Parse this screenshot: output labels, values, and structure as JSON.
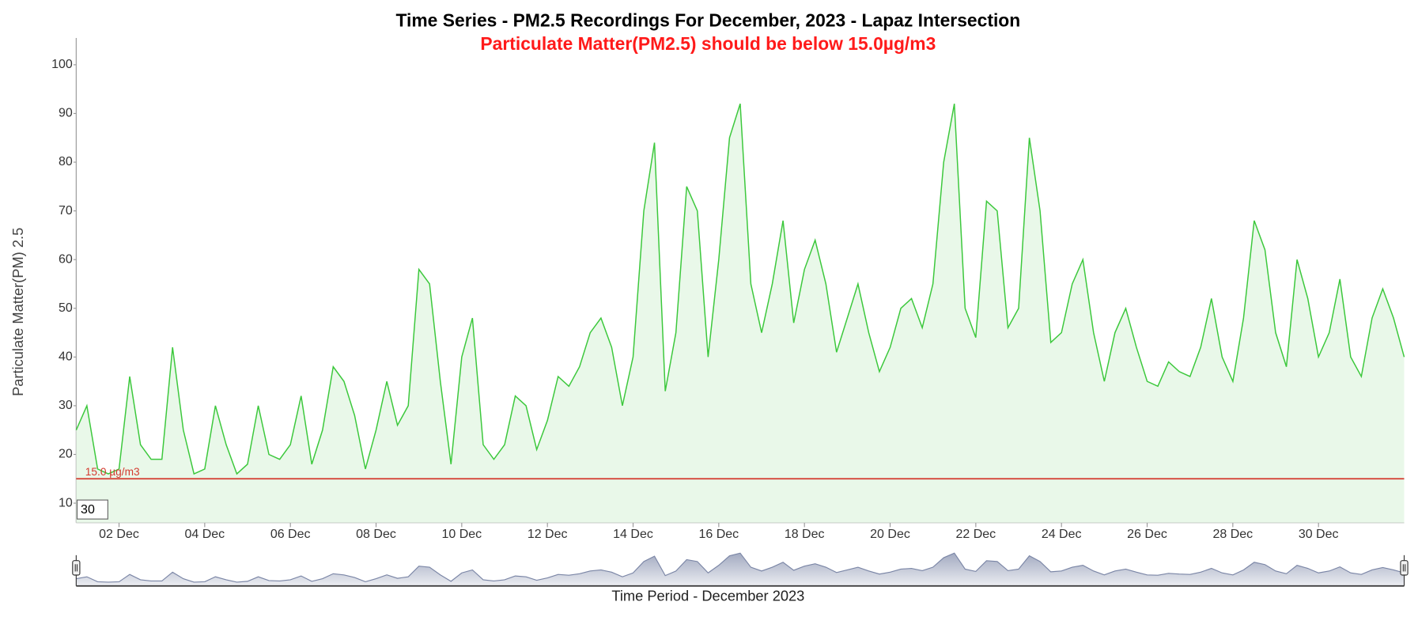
{
  "chart_data": {
    "type": "line",
    "title": "Time Series - PM2.5 Recordings For December, 2023 - Lapaz Intersection",
    "subtitle": "Particulate Matter(PM2.5) should be below 15.0µg/m3",
    "y_label": "Particulate Matter(PM) 2.5",
    "x_label": "Time Period - December 2023",
    "zoom_input": "30",
    "threshold": {
      "value": 15,
      "label": "15.0 µg/m3",
      "color": "#d43a2f"
    },
    "xlim": [
      1,
      32
    ],
    "ylim": [
      6,
      105.5
    ],
    "yticks": [
      10,
      20,
      30,
      40,
      50,
      60,
      70,
      80,
      90,
      100
    ],
    "xticks": [
      {
        "value": 2,
        "label": "02 Dec"
      },
      {
        "value": 4,
        "label": "04 Dec"
      },
      {
        "value": 6,
        "label": "06 Dec"
      },
      {
        "value": 8,
        "label": "08 Dec"
      },
      {
        "value": 10,
        "label": "10 Dec"
      },
      {
        "value": 12,
        "label": "12 Dec"
      },
      {
        "value": 14,
        "label": "14 Dec"
      },
      {
        "value": 16,
        "label": "16 Dec"
      },
      {
        "value": 18,
        "label": "18 Dec"
      },
      {
        "value": 20,
        "label": "20 Dec"
      },
      {
        "value": 22,
        "label": "22 Dec"
      },
      {
        "value": 24,
        "label": "24 Dec"
      },
      {
        "value": 26,
        "label": "26 Dec"
      },
      {
        "value": 28,
        "label": "28 Dec"
      },
      {
        "value": 30,
        "label": "30 Dec"
      }
    ],
    "x": [
      1,
      1.25,
      1.5,
      1.75,
      2,
      2.25,
      2.5,
      2.75,
      3,
      3.25,
      3.5,
      3.75,
      4,
      4.25,
      4.5,
      4.75,
      5,
      5.25,
      5.5,
      5.75,
      6,
      6.25,
      6.5,
      6.75,
      7,
      7.25,
      7.5,
      7.75,
      8,
      8.25,
      8.5,
      8.75,
      9,
      9.25,
      9.5,
      9.75,
      10,
      10.25,
      10.5,
      10.75,
      11,
      11.25,
      11.5,
      11.75,
      12,
      12.25,
      12.5,
      12.75,
      13,
      13.25,
      13.5,
      13.75,
      14,
      14.25,
      14.5,
      14.75,
      15,
      15.25,
      15.5,
      15.75,
      16,
      16.25,
      16.5,
      16.75,
      17,
      17.25,
      17.5,
      17.75,
      18,
      18.25,
      18.5,
      18.75,
      19,
      19.25,
      19.5,
      19.75,
      20,
      20.25,
      20.5,
      20.75,
      21,
      21.25,
      21.5,
      21.75,
      22,
      22.25,
      22.5,
      22.75,
      23,
      23.25,
      23.5,
      23.75,
      24,
      24.25,
      24.5,
      24.75,
      25,
      25.25,
      25.5,
      25.75,
      26,
      26.25,
      26.5,
      26.75,
      27,
      27.25,
      27.5,
      27.75,
      28,
      28.25,
      28.5,
      28.75,
      29,
      29.25,
      29.5,
      29.75,
      30,
      30.25,
      30.5,
      30.75,
      31,
      31.25,
      31.5,
      31.75,
      32
    ],
    "series": [
      {
        "name": "PM2.5",
        "color": "#3cc83c",
        "fill": "#e9f8e9",
        "values": [
          25,
          30,
          17,
          16,
          17,
          36,
          22,
          19,
          19,
          42,
          25,
          16,
          17,
          30,
          22,
          16,
          18,
          30,
          20,
          19,
          22,
          32,
          18,
          25,
          38,
          35,
          28,
          17,
          25,
          35,
          26,
          30,
          58,
          55,
          35,
          18,
          40,
          48,
          22,
          19,
          22,
          32,
          30,
          21,
          27,
          36,
          34,
          38,
          45,
          48,
          42,
          30,
          40,
          70,
          84,
          33,
          45,
          75,
          70,
          40,
          60,
          85,
          92,
          55,
          45,
          55,
          68,
          47,
          58,
          64,
          55,
          41,
          48,
          55,
          45,
          37,
          42,
          50,
          52,
          46,
          55,
          80,
          92,
          50,
          44,
          72,
          70,
          46,
          50,
          85,
          70,
          43,
          45,
          55,
          60,
          45,
          35,
          45,
          50,
          42,
          35,
          34,
          39,
          37,
          36,
          42,
          52,
          40,
          35,
          48,
          68,
          62,
          45,
          38,
          60,
          52,
          40,
          45,
          56,
          40,
          36,
          48,
          54,
          48,
          40
        ]
      }
    ],
    "navigator_color": "#7b86a6"
  }
}
